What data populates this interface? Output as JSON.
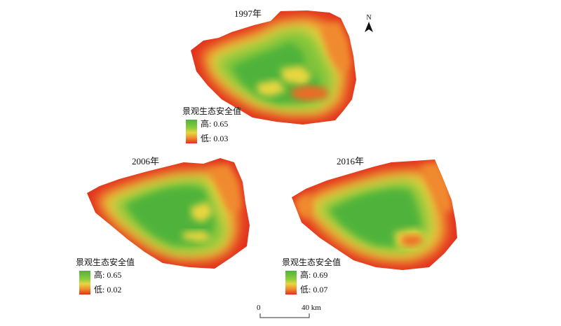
{
  "maps": [
    {
      "year": "1997年",
      "legend": {
        "title": "景观生态安全值",
        "high": "高: 0.65",
        "low": "低: 0.03"
      },
      "north_label": "N"
    },
    {
      "year": "2006年",
      "legend": {
        "title": "景观生态安全值",
        "high": "高: 0.65",
        "low": "低: 0.02"
      }
    },
    {
      "year": "2016年",
      "legend": {
        "title": "景观生态安全值",
        "high": "高: 0.69",
        "low": "低: 0.07"
      }
    }
  ],
  "scale": {
    "start": "0",
    "end": "40 km"
  },
  "colors": {
    "high": "#4fb33a",
    "mid": "#e8d640",
    "low": "#e2301e"
  }
}
